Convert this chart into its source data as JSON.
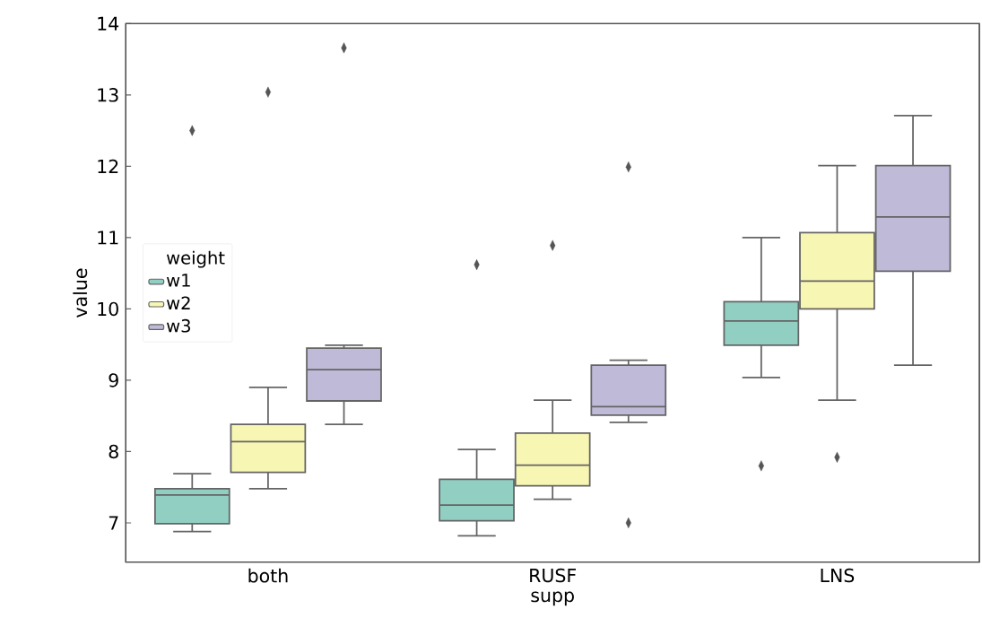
{
  "chart_data": {
    "type": "box",
    "xlabel": "supp",
    "ylabel": "value",
    "legend_title": "weight",
    "categories": [
      "both",
      "RUSF",
      "LNS"
    ],
    "ylim": [
      6.45,
      14
    ],
    "yticks": [
      7,
      8,
      9,
      10,
      11,
      12,
      13,
      14
    ],
    "legend": "left",
    "series": [
      {
        "name": "w1",
        "color": "#90cfc2",
        "boxes": [
          {
            "low": 6.88,
            "q1": 6.99,
            "median": 7.39,
            "q3": 7.48,
            "high": 7.69,
            "outliers": [
              12.5
            ]
          },
          {
            "low": 6.82,
            "q1": 7.03,
            "median": 7.25,
            "q3": 7.61,
            "high": 8.03,
            "outliers": [
              10.62
            ]
          },
          {
            "low": 9.04,
            "q1": 9.49,
            "median": 9.83,
            "q3": 10.1,
            "high": 11.0,
            "outliers": [
              7.8
            ]
          }
        ]
      },
      {
        "name": "w2",
        "color": "#f8f6b3",
        "boxes": [
          {
            "low": 7.48,
            "q1": 7.71,
            "median": 8.14,
            "q3": 8.38,
            "high": 8.9,
            "outliers": [
              13.04
            ]
          },
          {
            "low": 7.33,
            "q1": 7.52,
            "median": 7.81,
            "q3": 8.26,
            "high": 8.72,
            "outliers": [
              10.89
            ]
          },
          {
            "low": 8.72,
            "q1": 10.0,
            "median": 10.39,
            "q3": 11.07,
            "high": 12.01,
            "outliers": [
              7.92
            ]
          }
        ]
      },
      {
        "name": "w3",
        "color": "#bfbad8",
        "boxes": [
          {
            "low": 8.38,
            "q1": 8.71,
            "median": 9.15,
            "q3": 9.45,
            "high": 9.49,
            "outliers": [
              13.66
            ]
          },
          {
            "low": 8.41,
            "q1": 8.51,
            "median": 8.63,
            "q3": 9.21,
            "high": 9.28,
            "outliers": [
              11.99,
              7.0
            ]
          },
          {
            "low": 9.21,
            "q1": 10.53,
            "median": 11.29,
            "q3": 12.01,
            "high": 12.71
          }
        ]
      }
    ]
  }
}
